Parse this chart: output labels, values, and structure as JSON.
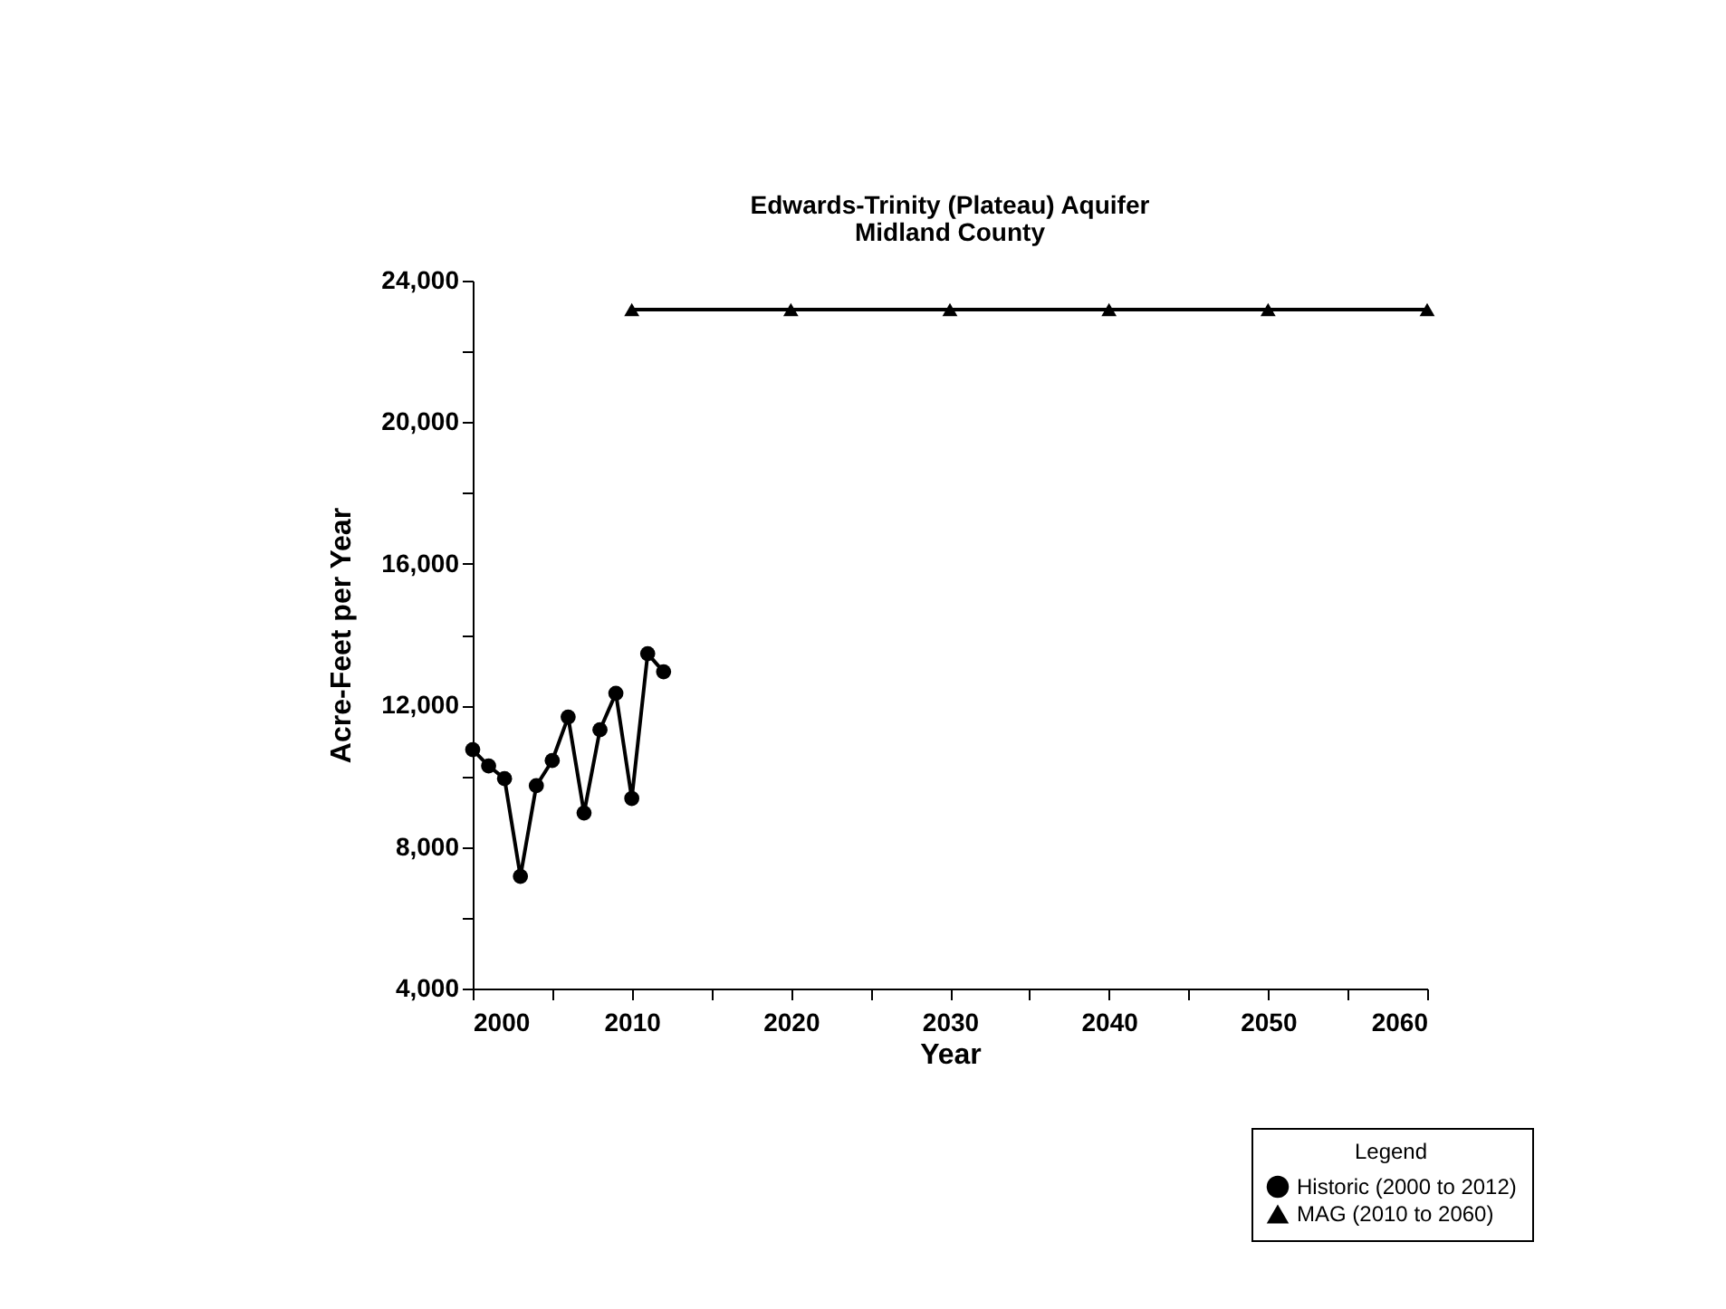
{
  "chart_data": {
    "type": "line",
    "title": "Edwards-Trinity (Plateau) Aquifer",
    "subtitle": "Midland County",
    "xlabel": "Year",
    "ylabel": "Acre-Feet per Year",
    "legend_title": "Legend",
    "legend": "bottom right",
    "xlim": [
      2000,
      2060
    ],
    "xticks": [
      2000,
      {
        "value": 2005,
        "label": null
      },
      2010,
      {
        "value": 2015,
        "label": null
      },
      2020,
      {
        "value": 2025,
        "label": null
      },
      2030,
      {
        "value": 2035,
        "label": null
      },
      2040,
      {
        "value": 2045,
        "label": null
      },
      2050,
      {
        "value": 2055,
        "label": null
      },
      2060
    ],
    "ylim": [
      4000,
      24000
    ],
    "yticks": [
      {
        "value": 4000,
        "label": "4,000"
      },
      {
        "value": 6000,
        "label": null
      },
      {
        "value": 8000,
        "label": "8,000"
      },
      {
        "value": 10000,
        "label": null
      },
      {
        "value": 12000,
        "label": "12,000"
      },
      {
        "value": 14000,
        "label": null
      },
      {
        "value": 16000,
        "label": "16,000"
      },
      {
        "value": 18000,
        "label": null
      },
      {
        "value": 20000,
        "label": "20,000"
      },
      {
        "value": 22000,
        "label": null
      },
      {
        "value": 24000,
        "label": "24,000"
      }
    ],
    "grid": false,
    "series": [
      {
        "name": "Historic (2000 to 2012)",
        "color": "#000000",
        "marker": "circle",
        "x": [
          2000,
          2001,
          2002,
          2003,
          2004,
          2005,
          2006,
          2007,
          2008,
          2009,
          2010,
          2011,
          2012
        ],
        "values": [
          10750,
          10290,
          9930,
          7170,
          9730,
          10440,
          11670,
          8960,
          11310,
          12340,
          9370,
          13460,
          12950
        ]
      },
      {
        "name": "MAG (2010 to 2060)",
        "color": "#000000",
        "marker": "triangle",
        "x": [
          2010,
          2020,
          2030,
          2040,
          2050,
          2060
        ],
        "values": [
          23180,
          23180,
          23180,
          23180,
          23180,
          23180
        ]
      }
    ]
  }
}
